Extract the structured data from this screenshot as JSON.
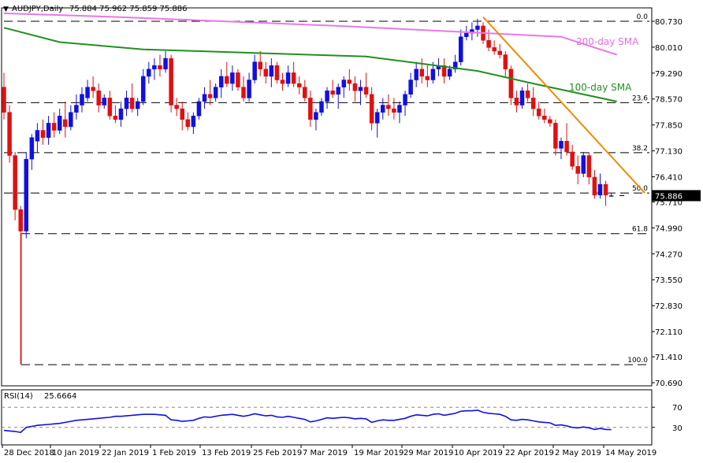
{
  "header": {
    "symbol": "AUDJPY,Daily",
    "ohlc": "75.884 75.962 75.859 75.886"
  },
  "rsi_header": {
    "label": "RSI(14)",
    "value": "25.6664"
  },
  "labels": {
    "sma200": "200-day SMA",
    "sma100": "100-day SMA"
  },
  "colors": {
    "bull": "#1010e0",
    "bear": "#e01010",
    "sma200": "#e878e8",
    "sma100": "#209020",
    "trendline": "#f08c00",
    "fib": "#000000",
    "rsi": "#1010e0",
    "price_tag_bg": "#000000"
  },
  "chart_data": {
    "type": "candlestick",
    "price_axis": {
      "ticks": [
        "80.730",
        "80.010",
        "79.290",
        "78.570",
        "77.850",
        "77.130",
        "76.410",
        "75.710",
        "74.990",
        "74.270",
        "73.550",
        "72.830",
        "72.110",
        "71.410",
        "70.690"
      ],
      "range": [
        70.69,
        80.73
      ]
    },
    "current_price": "75.886",
    "x_ticks": [
      "28 Dec 2018",
      "10 Jan 2019",
      "22 Jan 2019",
      "1 Feb 2019",
      "13 Feb 2019",
      "25 Feb 2019",
      "7 Mar 2019",
      "19 Mar 2019",
      "29 Mar 2019",
      "10 Apr 2019",
      "22 Apr 2019",
      "2 May 2019",
      "14 May 2019"
    ],
    "fib_levels": [
      {
        "label": "0.0",
        "price": 80.73
      },
      {
        "label": "23.6",
        "price": 78.47
      },
      {
        "label": "38.2",
        "price": 77.08
      },
      {
        "label": "50.0",
        "price": 75.96
      },
      {
        "label": "61.8",
        "price": 74.83
      },
      {
        "label": "100.0",
        "price": 71.19
      }
    ],
    "candles": [
      [
        78.9,
        79.3,
        78.0,
        78.2
      ],
      [
        78.2,
        78.4,
        76.8,
        77.0
      ],
      [
        77.0,
        77.1,
        75.2,
        75.5
      ],
      [
        75.5,
        75.6,
        71.2,
        74.9
      ],
      [
        74.9,
        77.1,
        74.7,
        76.9
      ],
      [
        76.9,
        77.6,
        76.6,
        77.5
      ],
      [
        77.4,
        77.9,
        77.1,
        77.7
      ],
      [
        77.7,
        78.0,
        77.3,
        77.5
      ],
      [
        77.5,
        78.1,
        77.3,
        77.9
      ],
      [
        77.9,
        78.2,
        77.5,
        77.7
      ],
      [
        77.7,
        78.3,
        77.6,
        78.1
      ],
      [
        78.0,
        78.5,
        77.5,
        77.8
      ],
      [
        77.8,
        78.4,
        77.7,
        78.2
      ],
      [
        78.2,
        78.7,
        78.0,
        78.4
      ],
      [
        78.4,
        78.9,
        78.2,
        78.7
      ],
      [
        78.6,
        79.1,
        78.5,
        78.9
      ],
      [
        78.9,
        79.2,
        78.6,
        78.8
      ],
      [
        78.8,
        79.0,
        78.2,
        78.4
      ],
      [
        78.4,
        78.7,
        78.3,
        78.6
      ],
      [
        78.6,
        78.8,
        78.0,
        78.1
      ],
      [
        78.1,
        78.4,
        77.9,
        78.0
      ],
      [
        78.0,
        78.5,
        77.8,
        78.3
      ],
      [
        78.3,
        78.8,
        78.1,
        78.6
      ],
      [
        78.6,
        79.0,
        78.2,
        78.3
      ],
      [
        78.3,
        78.6,
        78.1,
        78.5
      ],
      [
        78.5,
        79.4,
        78.4,
        79.2
      ],
      [
        79.2,
        79.6,
        79.0,
        79.4
      ],
      [
        79.4,
        79.7,
        79.1,
        79.5
      ],
      [
        79.5,
        79.8,
        79.2,
        79.4
      ],
      [
        79.4,
        79.9,
        79.3,
        79.7
      ],
      [
        79.7,
        79.8,
        78.2,
        78.4
      ],
      [
        78.4,
        78.6,
        78.1,
        78.3
      ],
      [
        78.3,
        78.5,
        77.7,
        78.0
      ],
      [
        78.0,
        78.2,
        77.7,
        77.8
      ],
      [
        77.8,
        78.2,
        77.6,
        78.1
      ],
      [
        78.1,
        78.6,
        78.0,
        78.5
      ],
      [
        78.5,
        78.9,
        78.3,
        78.7
      ],
      [
        78.7,
        79.1,
        78.4,
        78.6
      ],
      [
        78.6,
        79.0,
        78.5,
        78.9
      ],
      [
        78.9,
        79.4,
        78.6,
        79.2
      ],
      [
        79.2,
        79.6,
        78.9,
        79.0
      ],
      [
        79.0,
        79.5,
        78.8,
        79.3
      ],
      [
        79.3,
        79.4,
        78.8,
        78.9
      ],
      [
        78.9,
        79.2,
        78.5,
        78.6
      ],
      [
        78.6,
        79.3,
        78.5,
        79.1
      ],
      [
        79.1,
        79.8,
        79.0,
        79.6
      ],
      [
        79.6,
        79.9,
        79.2,
        79.4
      ],
      [
        79.4,
        79.6,
        79.0,
        79.2
      ],
      [
        79.2,
        79.7,
        78.9,
        79.5
      ],
      [
        79.5,
        79.6,
        79.0,
        79.1
      ],
      [
        79.1,
        79.3,
        78.8,
        79.0
      ],
      [
        79.0,
        79.5,
        78.9,
        79.3
      ],
      [
        79.3,
        79.6,
        78.9,
        79.0
      ],
      [
        79.0,
        79.2,
        78.7,
        78.9
      ],
      [
        78.9,
        79.1,
        78.5,
        78.6
      ],
      [
        78.6,
        78.8,
        77.8,
        78.0
      ],
      [
        78.0,
        78.3,
        77.7,
        78.2
      ],
      [
        78.2,
        78.6,
        78.1,
        78.5
      ],
      [
        78.5,
        78.9,
        78.3,
        78.8
      ],
      [
        78.8,
        79.1,
        78.6,
        78.7
      ],
      [
        78.7,
        79.0,
        78.3,
        78.9
      ],
      [
        78.9,
        79.2,
        78.6,
        79.1
      ],
      [
        79.1,
        79.4,
        78.8,
        79.0
      ],
      [
        79.0,
        79.2,
        78.5,
        78.8
      ],
      [
        78.8,
        79.1,
        78.4,
        78.9
      ],
      [
        78.9,
        79.3,
        78.6,
        78.7
      ],
      [
        78.7,
        78.9,
        77.7,
        77.9
      ],
      [
        77.9,
        78.3,
        77.5,
        78.2
      ],
      [
        78.2,
        78.6,
        78.0,
        78.4
      ],
      [
        78.4,
        78.7,
        78.1,
        78.3
      ],
      [
        78.3,
        78.6,
        78.0,
        78.2
      ],
      [
        78.2,
        78.5,
        77.9,
        78.4
      ],
      [
        78.4,
        78.8,
        78.1,
        78.7
      ],
      [
        78.7,
        79.3,
        78.6,
        79.1
      ],
      [
        79.1,
        79.6,
        78.9,
        79.4
      ],
      [
        79.4,
        79.7,
        79.0,
        79.2
      ],
      [
        79.2,
        79.5,
        78.9,
        79.1
      ],
      [
        79.1,
        79.6,
        79.0,
        79.4
      ],
      [
        79.4,
        79.7,
        79.2,
        79.5
      ],
      [
        79.5,
        79.7,
        79.0,
        79.2
      ],
      [
        79.2,
        79.5,
        79.1,
        79.4
      ],
      [
        79.4,
        79.8,
        79.3,
        79.6
      ],
      [
        79.6,
        80.5,
        79.5,
        80.3
      ],
      [
        80.3,
        80.6,
        80.2,
        80.4
      ],
      [
        80.4,
        80.7,
        80.2,
        80.5
      ],
      [
        80.5,
        80.8,
        80.3,
        80.6
      ],
      [
        80.6,
        80.7,
        80.1,
        80.2
      ],
      [
        80.2,
        80.5,
        79.9,
        80.0
      ],
      [
        80.0,
        80.2,
        79.8,
        79.9
      ],
      [
        79.9,
        80.1,
        79.7,
        79.8
      ],
      [
        79.8,
        79.9,
        79.2,
        79.4
      ],
      [
        79.4,
        79.5,
        78.4,
        78.6
      ],
      [
        78.6,
        78.8,
        78.2,
        78.4
      ],
      [
        78.4,
        78.9,
        78.3,
        78.8
      ],
      [
        78.8,
        79.0,
        78.5,
        78.6
      ],
      [
        78.6,
        78.9,
        78.1,
        78.3
      ],
      [
        78.3,
        78.5,
        78.0,
        78.1
      ],
      [
        78.1,
        78.3,
        77.9,
        78.0
      ],
      [
        78.0,
        78.1,
        77.8,
        77.9
      ],
      [
        77.9,
        78.0,
        77.0,
        77.2
      ],
      [
        77.2,
        77.5,
        76.9,
        77.4
      ],
      [
        77.4,
        77.9,
        77.0,
        77.1
      ],
      [
        77.1,
        77.3,
        76.6,
        76.7
      ],
      [
        76.7,
        77.0,
        76.2,
        76.5
      ],
      [
        76.5,
        77.1,
        76.4,
        77.0
      ],
      [
        77.0,
        77.1,
        76.2,
        76.4
      ],
      [
        76.4,
        76.6,
        75.8,
        75.9
      ],
      [
        75.9,
        76.5,
        75.8,
        76.2
      ],
      [
        76.2,
        76.3,
        75.6,
        75.9
      ],
      [
        75.884,
        75.962,
        75.859,
        75.886
      ]
    ],
    "sma200": [
      [
        0,
        80.95
      ],
      [
        20,
        80.85
      ],
      [
        60,
        80.6
      ],
      [
        100,
        80.3
      ],
      [
        110,
        79.8
      ]
    ],
    "sma100": [
      [
        0,
        80.55
      ],
      [
        10,
        80.15
      ],
      [
        25,
        79.95
      ],
      [
        45,
        79.85
      ],
      [
        65,
        79.75
      ],
      [
        75,
        79.55
      ],
      [
        85,
        79.35
      ],
      [
        95,
        79.0
      ],
      [
        110,
        78.5
      ]
    ],
    "trendline": [
      [
        86,
        80.85
      ],
      [
        115,
        75.96
      ]
    ],
    "rsi": {
      "levels": [
        "70",
        "30"
      ],
      "range": [
        0,
        100
      ],
      "values": [
        24,
        23,
        22,
        20,
        30,
        32,
        34,
        35,
        36,
        37,
        38,
        40,
        42,
        44,
        45,
        46,
        47,
        48,
        49,
        50,
        52,
        52,
        53,
        54,
        55,
        56,
        56,
        56,
        55,
        54,
        45,
        44,
        42,
        43,
        44,
        48,
        51,
        50,
        52,
        54,
        55,
        56,
        54,
        52,
        54,
        57,
        55,
        53,
        54,
        51,
        50,
        52,
        50,
        48,
        46,
        41,
        43,
        46,
        49,
        48,
        49,
        50,
        49,
        47,
        48,
        47,
        40,
        43,
        45,
        44,
        44,
        46,
        48,
        52,
        55,
        54,
        53,
        56,
        57,
        54,
        56,
        58,
        62,
        63,
        63,
        64,
        60,
        58,
        57,
        56,
        52,
        45,
        44,
        46,
        45,
        43,
        41,
        40,
        39,
        34,
        35,
        33,
        30,
        29,
        31,
        29,
        26,
        28,
        26,
        25.7
      ]
    }
  }
}
